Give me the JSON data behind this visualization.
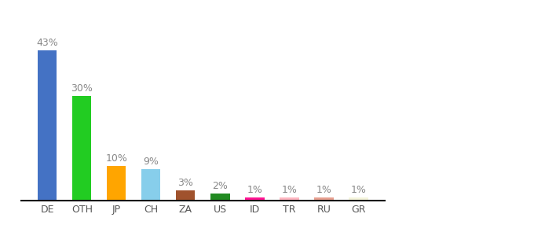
{
  "categories": [
    "DE",
    "OTH",
    "JP",
    "CH",
    "ZA",
    "US",
    "ID",
    "TR",
    "RU",
    "GR"
  ],
  "values": [
    43,
    30,
    10,
    9,
    3,
    2,
    1,
    1,
    1,
    1
  ],
  "bar_colors": [
    "#4472C4",
    "#22CC22",
    "#FFA500",
    "#87CEEB",
    "#A0522D",
    "#228B22",
    "#FF1493",
    "#FFB6C1",
    "#E8A090",
    "#F5F5DC"
  ],
  "labels": [
    "43%",
    "30%",
    "10%",
    "9%",
    "3%",
    "2%",
    "1%",
    "1%",
    "1%",
    "1%"
  ],
  "background_color": "#ffffff",
  "ylim": [
    0,
    52
  ],
  "bar_width": 0.55,
  "label_color": "#888888",
  "label_fontsize": 9,
  "tick_fontsize": 9
}
